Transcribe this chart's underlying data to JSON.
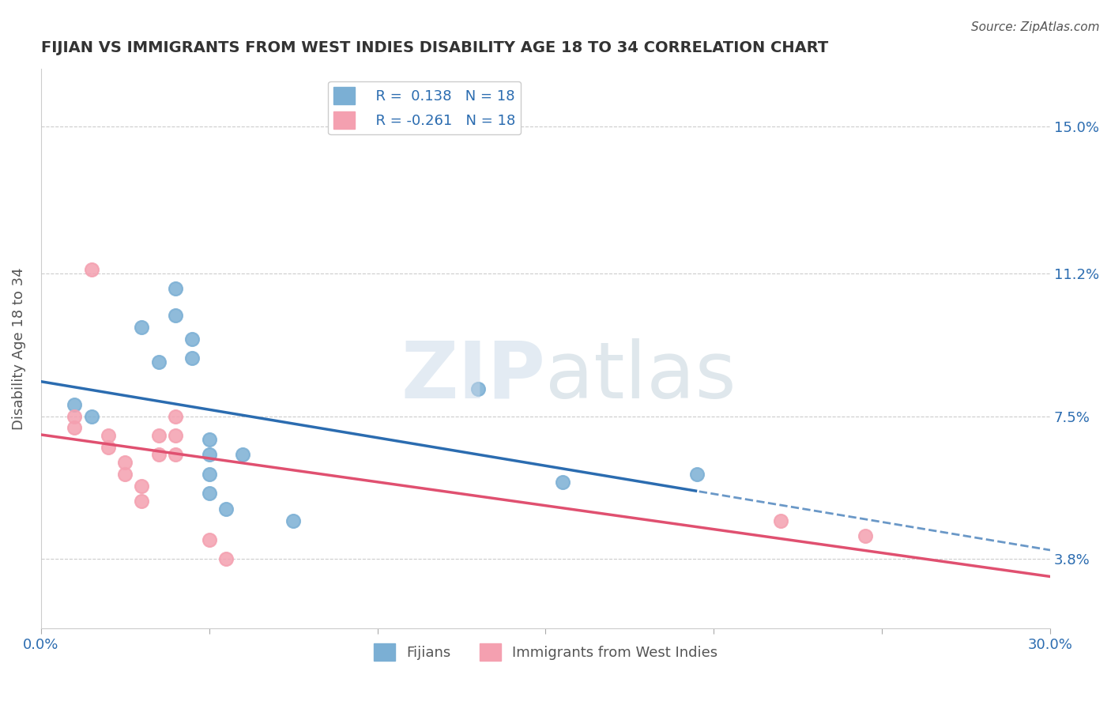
{
  "title": "FIJIAN VS IMMIGRANTS FROM WEST INDIES DISABILITY AGE 18 TO 34 CORRELATION CHART",
  "source": "Source: ZipAtlas.com",
  "xlabel": "",
  "ylabel": "Disability Age 18 to 34",
  "xlim": [
    0.0,
    0.3
  ],
  "ylim": [
    0.02,
    0.165
  ],
  "xticks": [
    0.0,
    0.05,
    0.1,
    0.15,
    0.2,
    0.25,
    0.3
  ],
  "xticklabels": [
    "0.0%",
    "",
    "",
    "",
    "",
    "",
    "30.0%"
  ],
  "ytick_labels_right": [
    "3.8%",
    "7.5%",
    "11.2%",
    "15.0%"
  ],
  "ytick_vals_right": [
    0.038,
    0.075,
    0.112,
    0.15
  ],
  "r_fijian": 0.138,
  "n_fijian": 18,
  "r_west_indies": -0.261,
  "n_west_indies": 18,
  "fijian_color": "#7BAFD4",
  "west_indies_color": "#F4A0B0",
  "fijian_line_color": "#2B6CB0",
  "west_indies_line_color": "#E05070",
  "background_color": "#FFFFFF",
  "grid_color": "#CCCCCC",
  "watermark": "ZIPatlas",
  "fijian_x": [
    0.01,
    0.02,
    0.03,
    0.03,
    0.04,
    0.04,
    0.04,
    0.04,
    0.05,
    0.05,
    0.05,
    0.05,
    0.05,
    0.06,
    0.07,
    0.12,
    0.14,
    0.18
  ],
  "fijian_y": [
    0.075,
    0.078,
    0.095,
    0.088,
    0.108,
    0.1,
    0.096,
    0.092,
    0.068,
    0.065,
    0.06,
    0.055,
    0.052,
    0.065,
    0.048,
    0.08,
    0.055,
    0.06
  ],
  "west_indies_x": [
    0.01,
    0.01,
    0.02,
    0.02,
    0.02,
    0.02,
    0.03,
    0.03,
    0.03,
    0.03,
    0.03,
    0.04,
    0.04,
    0.04,
    0.05,
    0.05,
    0.22,
    0.24
  ],
  "west_indies_y": [
    0.075,
    0.073,
    0.07,
    0.068,
    0.066,
    0.064,
    0.062,
    0.058,
    0.055,
    0.052,
    0.048,
    0.072,
    0.068,
    0.065,
    0.042,
    0.038,
    0.048,
    0.044
  ]
}
